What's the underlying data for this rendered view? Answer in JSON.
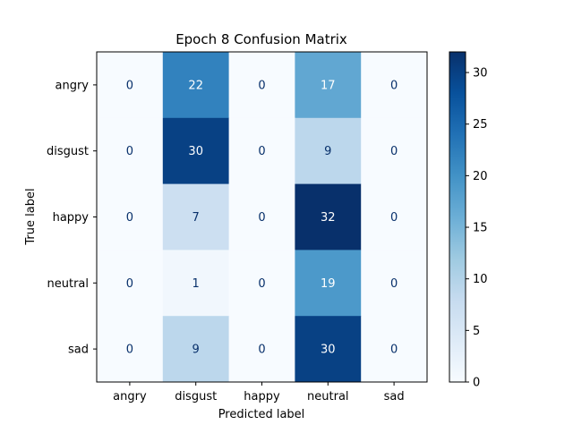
{
  "chart_data": {
    "type": "heatmap",
    "title": "Epoch 8 Confusion Matrix",
    "xlabel": "Predicted label",
    "ylabel": "True label",
    "x_categories": [
      "angry",
      "disgust",
      "happy",
      "neutral",
      "sad"
    ],
    "y_categories": [
      "angry",
      "disgust",
      "happy",
      "neutral",
      "sad"
    ],
    "values": [
      [
        0,
        22,
        0,
        17,
        0
      ],
      [
        0,
        30,
        0,
        9,
        0
      ],
      [
        0,
        7,
        0,
        32,
        0
      ],
      [
        0,
        1,
        0,
        19,
        0
      ],
      [
        0,
        9,
        0,
        30,
        0
      ]
    ],
    "colormap": "Blues",
    "vmin": 0,
    "vmax": 32,
    "colorbar_ticks": [
      0,
      5,
      10,
      15,
      20,
      25,
      30
    ],
    "grid": false
  }
}
